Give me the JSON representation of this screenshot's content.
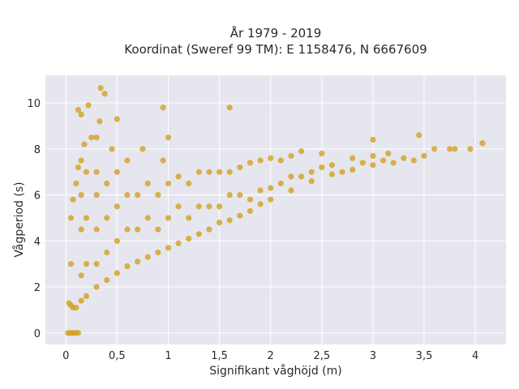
{
  "chart_data": {
    "type": "scatter",
    "title_line1": "År 1979 - 2019",
    "title_line2": "Koordinat (Sweref 99 TM): E 1158476, N 6667609",
    "xlabel": "Signifikant våghöjd (m)",
    "ylabel": "Vågperiod (s)",
    "xlim": [
      -0.2,
      4.3
    ],
    "ylim": [
      -0.5,
      11.2
    ],
    "x_ticks": [
      0,
      0.5,
      1,
      1.5,
      2,
      2.5,
      3,
      3.5,
      4
    ],
    "x_tick_labels": [
      "0",
      "0,5",
      "1",
      "1,5",
      "2",
      "2,5",
      "3",
      "3,5",
      "4"
    ],
    "y_ticks": [
      0,
      2,
      4,
      6,
      8,
      10
    ],
    "y_tick_labels": [
      "0",
      "2",
      "4",
      "6",
      "8",
      "10"
    ],
    "grid": true,
    "marker_color": "#d4a020",
    "background_color": "#e6e6ef",
    "points": [
      [
        0.02,
        0
      ],
      [
        0.04,
        0
      ],
      [
        0.06,
        0
      ],
      [
        0.08,
        0
      ],
      [
        0.1,
        0
      ],
      [
        0.12,
        0
      ],
      [
        0.03,
        1.3
      ],
      [
        0.05,
        1.2
      ],
      [
        0.07,
        1.1
      ],
      [
        0.1,
        1.1
      ],
      [
        0.15,
        1.4
      ],
      [
        0.2,
        1.6
      ],
      [
        0.3,
        2.0
      ],
      [
        0.4,
        2.3
      ],
      [
        0.5,
        2.6
      ],
      [
        0.6,
        2.9
      ],
      [
        0.7,
        3.1
      ],
      [
        0.8,
        3.3
      ],
      [
        0.9,
        3.5
      ],
      [
        1.0,
        3.7
      ],
      [
        1.1,
        3.9
      ],
      [
        1.2,
        4.1
      ],
      [
        1.3,
        4.3
      ],
      [
        1.4,
        4.5
      ],
      [
        1.5,
        4.8
      ],
      [
        1.6,
        4.9
      ],
      [
        1.7,
        5.1
      ],
      [
        1.8,
        5.3
      ],
      [
        1.9,
        5.6
      ],
      [
        2.0,
        5.8
      ],
      [
        2.2,
        6.2
      ],
      [
        2.4,
        6.6
      ],
      [
        2.6,
        6.9
      ],
      [
        2.8,
        7.1
      ],
      [
        3.0,
        7.3
      ],
      [
        3.2,
        7.4
      ],
      [
        3.5,
        7.7
      ],
      [
        3.8,
        8.0
      ],
      [
        4.07,
        8.25
      ],
      [
        0.05,
        3.0
      ],
      [
        0.05,
        5.0
      ],
      [
        0.07,
        5.8
      ],
      [
        0.1,
        6.5
      ],
      [
        0.12,
        7.2
      ],
      [
        0.15,
        2.5
      ],
      [
        0.15,
        4.5
      ],
      [
        0.15,
        6.0
      ],
      [
        0.15,
        7.5
      ],
      [
        0.18,
        8.2
      ],
      [
        0.2,
        3.0
      ],
      [
        0.2,
        5.0
      ],
      [
        0.2,
        7.0
      ],
      [
        0.25,
        8.5
      ],
      [
        0.3,
        3.0
      ],
      [
        0.3,
        4.5
      ],
      [
        0.3,
        6.0
      ],
      [
        0.3,
        7.0
      ],
      [
        0.3,
        8.5
      ],
      [
        0.33,
        9.2
      ],
      [
        0.34,
        10.65
      ],
      [
        0.38,
        10.4
      ],
      [
        0.12,
        9.7
      ],
      [
        0.15,
        9.5
      ],
      [
        0.22,
        9.9
      ],
      [
        0.4,
        3.5
      ],
      [
        0.4,
        5.0
      ],
      [
        0.4,
        6.5
      ],
      [
        0.45,
        8.0
      ],
      [
        0.5,
        9.3
      ],
      [
        0.5,
        4.0
      ],
      [
        0.5,
        5.5
      ],
      [
        0.5,
        7.0
      ],
      [
        0.6,
        4.5
      ],
      [
        0.6,
        6.0
      ],
      [
        0.6,
        7.5
      ],
      [
        0.7,
        4.5
      ],
      [
        0.7,
        6.0
      ],
      [
        0.75,
        8.0
      ],
      [
        0.8,
        5.0
      ],
      [
        0.8,
        6.5
      ],
      [
        0.9,
        4.5
      ],
      [
        0.9,
        6.0
      ],
      [
        0.95,
        7.5
      ],
      [
        0.95,
        9.8
      ],
      [
        1.0,
        8.5
      ],
      [
        1.0,
        5.0
      ],
      [
        1.0,
        6.5
      ],
      [
        1.1,
        5.5
      ],
      [
        1.1,
        6.8
      ],
      [
        1.2,
        5.0
      ],
      [
        1.2,
        6.5
      ],
      [
        1.3,
        5.5
      ],
      [
        1.3,
        7.0
      ],
      [
        1.4,
        5.5
      ],
      [
        1.4,
        7.0
      ],
      [
        1.5,
        5.5
      ],
      [
        1.5,
        7.0
      ],
      [
        1.6,
        6.0
      ],
      [
        1.6,
        7.0
      ],
      [
        1.6,
        9.8
      ],
      [
        1.7,
        6.0
      ],
      [
        1.7,
        7.2
      ],
      [
        1.8,
        5.8
      ],
      [
        1.8,
        7.4
      ],
      [
        1.9,
        6.2
      ],
      [
        1.9,
        7.5
      ],
      [
        2.0,
        6.3
      ],
      [
        2.0,
        7.6
      ],
      [
        2.1,
        6.5
      ],
      [
        2.1,
        7.5
      ],
      [
        2.2,
        6.8
      ],
      [
        2.2,
        7.7
      ],
      [
        2.3,
        6.8
      ],
      [
        2.3,
        7.9
      ],
      [
        2.4,
        7.0
      ],
      [
        2.5,
        7.2
      ],
      [
        2.5,
        7.8
      ],
      [
        2.6,
        7.3
      ],
      [
        2.7,
        7.0
      ],
      [
        2.8,
        7.6
      ],
      [
        2.9,
        7.4
      ],
      [
        3.0,
        8.4
      ],
      [
        3.0,
        7.7
      ],
      [
        3.1,
        7.5
      ],
      [
        3.15,
        7.8
      ],
      [
        3.3,
        7.6
      ],
      [
        3.4,
        7.5
      ],
      [
        3.45,
        8.6
      ],
      [
        3.6,
        8.0
      ],
      [
        3.75,
        8.0
      ],
      [
        3.95,
        8.0
      ]
    ]
  }
}
